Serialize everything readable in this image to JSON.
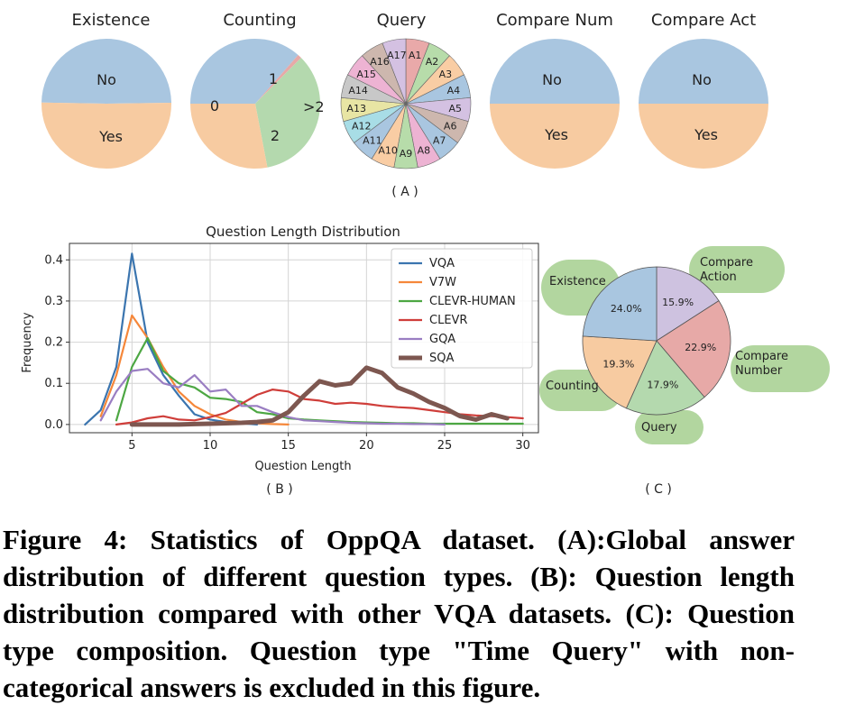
{
  "colors": {
    "blue": "#a9c6e0",
    "orange": "#f7cba1",
    "green": "#b4d9ae",
    "purple": "#cec2e0",
    "red": "#e7a9a7",
    "line_blue": "#3b75af",
    "line_orange": "#f5873a",
    "line_green": "#4da743",
    "line_red": "#cf3e3a",
    "line_purple": "#9a7ec2",
    "line_brown": "#7d5750",
    "bubble": "#a5cf8e"
  },
  "chart_data": [
    {
      "type": "pie",
      "panel": "A",
      "title": "Existence",
      "labels": [
        "No",
        "Yes"
      ],
      "values": [
        49.5,
        50.5
      ],
      "colors": [
        "#a9c6e0",
        "#f7cba1"
      ]
    },
    {
      "type": "pie",
      "panel": "A",
      "title": "Counting",
      "labels": [
        "1",
        ">2",
        "2",
        "0"
      ],
      "values": [
        36.5,
        1.0,
        34.5,
        28.0
      ],
      "colors": [
        "#a9c6e0",
        "#e7a9a7",
        "#b4d9ae",
        "#f7cba1"
      ]
    },
    {
      "type": "pie",
      "panel": "A",
      "title": "Query",
      "labels": [
        "A1",
        "A2",
        "A3",
        "A4",
        "A5",
        "A6",
        "A7",
        "A8",
        "A9",
        "A10",
        "A11",
        "A12",
        "A13",
        "A14",
        "A15",
        "A16",
        "A17"
      ],
      "values": [
        1,
        1,
        1,
        1,
        1,
        1,
        1,
        1,
        1,
        1,
        1,
        1,
        1,
        1,
        1,
        1,
        1
      ],
      "colors": [
        "#e9a9a9",
        "#b7dcaa",
        "#f9cda4",
        "#a9c6e0",
        "#d4c1e2",
        "#cdb7ae",
        "#a9c6e0",
        "#edb3d3",
        "#b7dcaa",
        "#f9cda4",
        "#a9c6e0",
        "#a8dde6",
        "#e8e5a4",
        "#c8c8c8",
        "#edb3d3",
        "#cdb7ae",
        "#d4c1e2"
      ]
    },
    {
      "type": "pie",
      "panel": "A",
      "title": "Compare Num",
      "labels": [
        "No",
        "Yes"
      ],
      "values": [
        50,
        50
      ],
      "colors": [
        "#a9c6e0",
        "#f7cba1"
      ]
    },
    {
      "type": "pie",
      "panel": "A",
      "title": "Compare Act",
      "labels": [
        "No",
        "Yes"
      ],
      "values": [
        50,
        50
      ],
      "colors": [
        "#a9c6e0",
        "#f7cba1"
      ]
    },
    {
      "type": "line",
      "panel": "B",
      "title": "Question Length Distribution",
      "xlabel": "Question Length",
      "ylabel": "Frequency",
      "xlim": [
        1,
        31
      ],
      "ylim": [
        -0.02,
        0.44
      ],
      "xticks": [
        5,
        10,
        15,
        20,
        25,
        30
      ],
      "yticks": [
        0.0,
        0.1,
        0.2,
        0.3,
        0.4
      ],
      "ytick_labels": [
        "0.0",
        "0.1",
        "0.2",
        "0.3",
        "0.4"
      ],
      "grid": true,
      "legend": "top-right",
      "series": [
        {
          "name": "VQA",
          "color": "#3b75af",
          "width": 2.2,
          "x": [
            2,
            3,
            4,
            5,
            6,
            7,
            8,
            9,
            10,
            11,
            12,
            13
          ],
          "y": [
            0.0,
            0.035,
            0.14,
            0.415,
            0.2,
            0.12,
            0.07,
            0.025,
            0.012,
            0.006,
            0.003,
            0.0
          ]
        },
        {
          "name": "V7W",
          "color": "#f5873a",
          "width": 2.2,
          "x": [
            3,
            4,
            5,
            6,
            7,
            8,
            9,
            10,
            11,
            12,
            13,
            14,
            15
          ],
          "y": [
            0.02,
            0.12,
            0.265,
            0.21,
            0.14,
            0.08,
            0.045,
            0.025,
            0.012,
            0.006,
            0.003,
            0.001,
            0.0
          ]
        },
        {
          "name": "CLEVR-HUMAN",
          "color": "#4da743",
          "width": 2.2,
          "x": [
            4,
            5,
            6,
            7,
            8,
            9,
            10,
            11,
            12,
            13,
            14,
            15,
            16,
            17,
            18,
            19,
            20,
            21,
            22,
            23,
            24,
            25,
            26,
            27,
            28,
            29,
            30
          ],
          "y": [
            0.01,
            0.14,
            0.21,
            0.13,
            0.1,
            0.09,
            0.065,
            0.062,
            0.055,
            0.03,
            0.025,
            0.015,
            0.012,
            0.01,
            0.008,
            0.006,
            0.005,
            0.004,
            0.003,
            0.003,
            0.002,
            0.002,
            0.002,
            0.002,
            0.002,
            0.002,
            0.002
          ]
        },
        {
          "name": "CLEVR",
          "color": "#cf3e3a",
          "width": 2.2,
          "x": [
            4,
            5,
            6,
            7,
            8,
            9,
            10,
            11,
            12,
            13,
            14,
            15,
            16,
            17,
            18,
            19,
            20,
            21,
            22,
            23,
            24,
            25,
            26,
            27,
            28,
            29,
            30
          ],
          "y": [
            0.0,
            0.005,
            0.015,
            0.02,
            0.012,
            0.01,
            0.018,
            0.028,
            0.05,
            0.072,
            0.085,
            0.08,
            0.062,
            0.058,
            0.05,
            0.053,
            0.05,
            0.045,
            0.042,
            0.04,
            0.035,
            0.03,
            0.025,
            0.022,
            0.02,
            0.018,
            0.015
          ]
        },
        {
          "name": "GQA",
          "color": "#9a7ec2",
          "width": 2.2,
          "x": [
            3,
            4,
            5,
            6,
            7,
            8,
            9,
            10,
            11,
            12,
            13,
            14,
            15,
            16,
            17,
            18,
            19,
            20,
            21,
            22,
            23,
            24,
            25
          ],
          "y": [
            0.01,
            0.08,
            0.13,
            0.135,
            0.1,
            0.09,
            0.12,
            0.08,
            0.085,
            0.045,
            0.045,
            0.03,
            0.018,
            0.01,
            0.008,
            0.006,
            0.004,
            0.003,
            0.002,
            0.002,
            0.001,
            0.001,
            0.0
          ]
        },
        {
          "name": "SQA",
          "color": "#7d5750",
          "width": 5,
          "x": [
            5,
            6,
            7,
            8,
            9,
            10,
            11,
            12,
            13,
            14,
            15,
            16,
            17,
            18,
            19,
            20,
            21,
            22,
            23,
            24,
            25,
            26,
            27,
            28,
            29
          ],
          "y": [
            0.0,
            0.0,
            0.0,
            0.0,
            0.001,
            0.002,
            0.003,
            0.004,
            0.006,
            0.01,
            0.03,
            0.07,
            0.105,
            0.095,
            0.1,
            0.138,
            0.125,
            0.09,
            0.075,
            0.055,
            0.04,
            0.02,
            0.012,
            0.025,
            0.015
          ]
        }
      ]
    },
    {
      "type": "pie",
      "panel": "C",
      "labels": [
        "Compare Action",
        "Compare Number",
        "Query",
        "Counting",
        "Existence"
      ],
      "values": [
        15.9,
        22.9,
        17.9,
        19.3,
        24.0
      ],
      "value_labels": [
        "15.9%",
        "22.9%",
        "17.9%",
        "19.3%",
        "24.0%"
      ],
      "colors": [
        "#cec2e0",
        "#e7a9a7",
        "#b4d9ae",
        "#f7cba1",
        "#a9c6e0"
      ]
    }
  ],
  "panel_labels": {
    "a": "( A )",
    "b": "( B )",
    "c": "( C )"
  },
  "pie_c_names": {
    "existence": "Existence",
    "compare_action_line1": "Compare",
    "compare_action_line2": "Action",
    "compare_number_line1": "Compare",
    "compare_number_line2": "Number",
    "counting": "Counting",
    "query": "Query"
  },
  "caption": "Figure 4: Statistics of OppQA dataset. (A):Global answer distribution of different question types. (B): Question length distribution compared with other VQA datasets. (C): Question type composition. Question type \"Time Query\" with non-categorical answers is excluded in this figure."
}
